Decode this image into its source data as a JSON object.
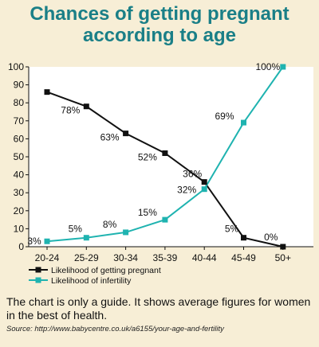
{
  "title_lines": [
    "Chances of getting pregnant",
    "according to age"
  ],
  "chart_data": {
    "type": "line",
    "categories": [
      "20-24",
      "25-29",
      "30-34",
      "35-39",
      "40-44",
      "45-49",
      "50+"
    ],
    "ylim": [
      0,
      100
    ],
    "yticks": [
      0,
      10,
      20,
      30,
      40,
      50,
      60,
      70,
      80,
      90,
      100
    ],
    "grid": false,
    "legend_position": "bottom-left",
    "series": [
      {
        "name": "Likelihood of getting pregnant",
        "color": "#111111",
        "values": [
          86,
          78,
          63,
          52,
          36,
          5,
          0
        ],
        "labels": [
          "",
          "78%",
          "63%",
          "52%",
          "36%",
          "5%",
          "0%"
        ]
      },
      {
        "name": "Likelihood of infertility",
        "color": "#1fb3b0",
        "values": [
          3,
          5,
          8,
          15,
          32,
          69,
          100
        ],
        "labels": [
          "3%",
          "5%",
          "8%",
          "15%",
          "32%",
          "69%",
          "100%"
        ]
      }
    ]
  },
  "footnote": "The chart is only a guide. It shows average figures for women in the best of health.",
  "source": "Source: http://www.babycentre.co.uk/a6155/your-age-and-fertility"
}
